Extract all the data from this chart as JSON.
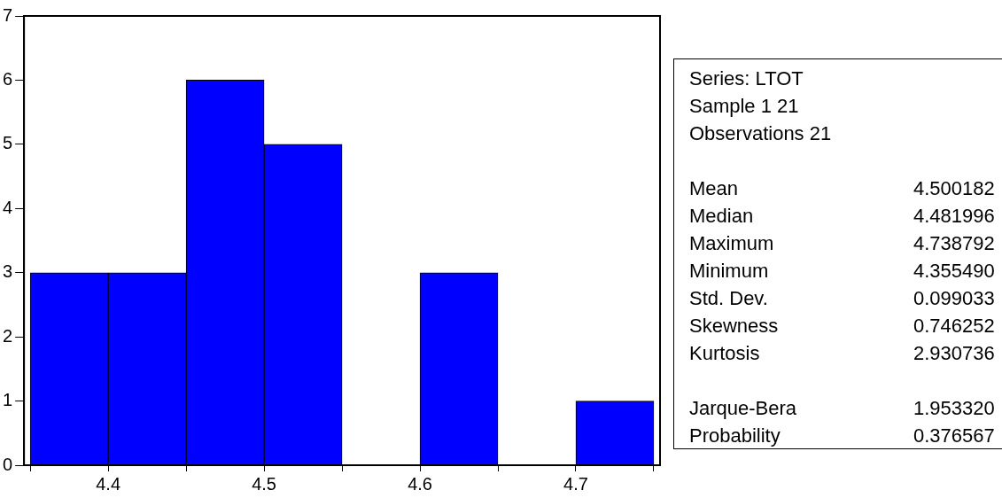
{
  "chart_data": [
    {
      "type": "histogram",
      "bins": [
        4.35,
        4.4,
        4.45,
        4.5,
        4.55,
        4.6,
        4.65,
        4.7,
        4.75
      ],
      "values": [
        3,
        3,
        6,
        5,
        0,
        3,
        0,
        1
      ],
      "color": "#0000ff",
      "xlim": [
        4.346,
        4.754
      ],
      "xticks": [
        {
          "value": 4.35,
          "label": null
        },
        4.4,
        {
          "value": 4.45,
          "label": null
        },
        4.5,
        {
          "value": 4.55,
          "label": null
        },
        4.6,
        {
          "value": 4.65,
          "label": null
        },
        4.7,
        {
          "value": 4.75,
          "label": null
        }
      ],
      "ylim": [
        0,
        7
      ],
      "yticks": [
        0,
        1,
        2,
        3,
        4,
        5,
        6,
        7
      ],
      "grid": false,
      "legend": false
    },
    {
      "type": "other",
      "annotations": [
        "Series: LTOT",
        "Sample 1 21",
        "Observations 21"
      ],
      "categories": [
        "Mean",
        "Median",
        "Maximum",
        "Minimum",
        "Std. Dev.",
        "Skewness",
        "Kurtosis",
        null,
        "Jarque-Bera",
        "Probability"
      ],
      "value_labels": [
        "4.500182",
        "4.481996",
        "4.738792",
        "4.355490",
        "0.099033",
        "0.746252",
        "2.930736",
        null,
        "1.953320",
        "0.376567"
      ]
    }
  ]
}
